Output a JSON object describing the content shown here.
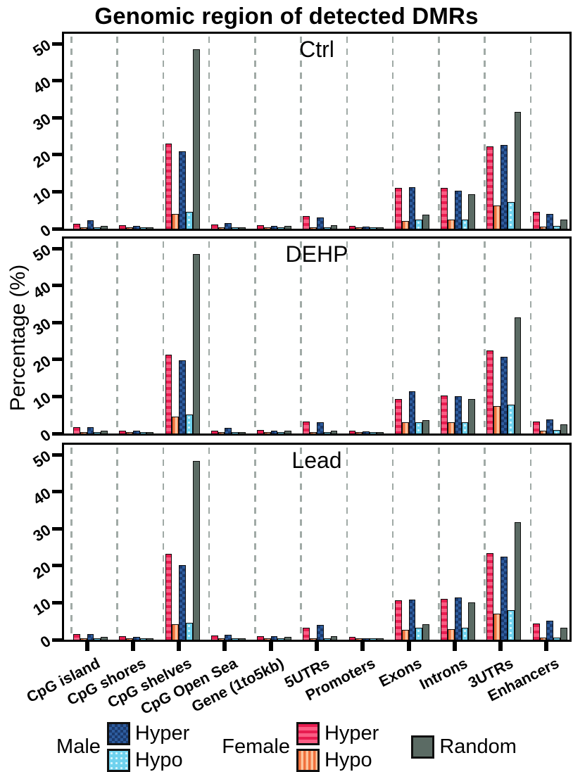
{
  "title": "Genomic region of detected DMRs",
  "y_axis": {
    "label": "Percentage (%)",
    "ticks": [
      50,
      40,
      30,
      20,
      10,
      0
    ],
    "min": 0,
    "max": 50
  },
  "categories": [
    "CpG island",
    "CpG shores",
    "CpG shelves",
    "CpG Open Sea",
    "Gene (1to5kb)",
    "5UTRs",
    "Promoters",
    "Exons",
    "Introns",
    "3UTRs",
    "Enhancers"
  ],
  "legend": {
    "male_label": "Male",
    "female_label": "Female",
    "male_hyper_label": "Hyper",
    "male_hypo_label": "Hypo",
    "female_hyper_label": "Hyper",
    "female_hypo_label": "Hypo",
    "random_label": "Random"
  },
  "colors": {
    "female_hyper_base": "#fa5d84",
    "female_hyper_stripe": "#e81c50",
    "female_hypo_base": "#fcc39c",
    "female_hypo_stripe": "#f1703c",
    "male_hyper_base": "#1b3a6d",
    "male_hyper_check": "#2d5c9e",
    "male_hypo_base": "#6fd2ee",
    "male_hypo_dot": "#d6f4fc",
    "random": "#5b6b64",
    "grid_dash": "#a0aaa6",
    "bar_border": "#0d0d0d"
  },
  "chart_data": [
    {
      "type": "bar",
      "panel": "Ctrl",
      "ylim": [
        0,
        50
      ],
      "ylabel": "Percentage (%)",
      "grid": "vertical-dashed",
      "categories": [
        "CpG island",
        "CpG shores",
        "CpG shelves",
        "CpG Open Sea",
        "Gene (1to5kb)",
        "5UTRs",
        "Promoters",
        "Exons",
        "Introns",
        "3UTRs",
        "Enhancers"
      ],
      "series": [
        {
          "name": "Female Hyper",
          "key": "female_hyper",
          "values": [
            1.3,
            1.0,
            23.0,
            1.1,
            1.0,
            3.4,
            0.8,
            11.0,
            11.0,
            22.2,
            4.5
          ]
        },
        {
          "name": "Female Hypo",
          "key": "female_hypo",
          "values": [
            0.3,
            0.2,
            4.0,
            0.15,
            0.2,
            0.3,
            0.15,
            2.0,
            2.4,
            6.3,
            0.6
          ]
        },
        {
          "name": "Male Hyper",
          "key": "male_hyper",
          "values": [
            2.2,
            0.7,
            21.0,
            1.5,
            0.7,
            3.1,
            0.5,
            11.2,
            10.2,
            22.6,
            4.0
          ]
        },
        {
          "name": "Male Hypo",
          "key": "male_hypo",
          "values": [
            0.3,
            0.2,
            4.5,
            0.15,
            0.2,
            0.4,
            0.15,
            2.4,
            2.4,
            7.2,
            0.8
          ]
        },
        {
          "name": "Random",
          "key": "random",
          "values": [
            0.8,
            0.3,
            48.5,
            0.2,
            0.7,
            1.0,
            0.2,
            3.8,
            9.3,
            31.5,
            2.4
          ]
        }
      ]
    },
    {
      "type": "bar",
      "panel": "DEHP",
      "ylim": [
        0,
        50
      ],
      "ylabel": "Percentage (%)",
      "grid": "vertical-dashed",
      "categories": [
        "CpG island",
        "CpG shores",
        "CpG shelves",
        "CpG Open Sea",
        "Gene (1to5kb)",
        "5UTRs",
        "Promoters",
        "Exons",
        "Introns",
        "3UTRs",
        "Enhancers"
      ],
      "series": [
        {
          "name": "Female Hyper",
          "key": "female_hyper",
          "values": [
            1.7,
            0.8,
            21.3,
            0.8,
            0.9,
            3.2,
            0.7,
            9.4,
            10.2,
            22.5,
            3.2
          ]
        },
        {
          "name": "Female Hypo",
          "key": "female_hypo",
          "values": [
            0.2,
            0.15,
            4.6,
            0.1,
            0.2,
            0.3,
            0.1,
            3.1,
            3.1,
            7.5,
            0.7
          ]
        },
        {
          "name": "Male Hyper",
          "key": "male_hyper",
          "values": [
            1.7,
            0.7,
            19.8,
            1.5,
            0.7,
            3.0,
            0.5,
            11.4,
            10.0,
            20.8,
            3.8
          ]
        },
        {
          "name": "Male Hypo",
          "key": "male_hypo",
          "values": [
            0.2,
            0.15,
            5.2,
            0.1,
            0.2,
            0.4,
            0.1,
            3.1,
            3.1,
            7.8,
            1.0
          ]
        },
        {
          "name": "Random",
          "key": "random",
          "values": [
            0.7,
            0.3,
            48.5,
            0.2,
            0.7,
            0.8,
            0.2,
            3.7,
            9.4,
            31.3,
            2.5
          ]
        }
      ]
    },
    {
      "type": "bar",
      "panel": "Lead",
      "ylim": [
        0,
        50
      ],
      "ylabel": "Percentage (%)",
      "grid": "vertical-dashed",
      "categories": [
        "CpG island",
        "CpG shores",
        "CpG shelves",
        "CpG Open Sea",
        "Gene (1to5kb)",
        "5UTRs",
        "Promoters",
        "Exons",
        "Introns",
        "3UTRs",
        "Enhancers"
      ],
      "series": [
        {
          "name": "Female Hyper",
          "key": "female_hyper",
          "values": [
            1.5,
            1.0,
            23.2,
            1.1,
            0.9,
            3.2,
            0.7,
            10.6,
            11.0,
            23.3,
            4.4
          ]
        },
        {
          "name": "Female Hypo",
          "key": "female_hypo",
          "values": [
            0.2,
            0.15,
            4.1,
            0.1,
            0.2,
            0.3,
            0.1,
            2.7,
            2.8,
            7.1,
            0.5
          ]
        },
        {
          "name": "Male Hyper",
          "key": "male_hyper",
          "values": [
            1.5,
            0.7,
            20.2,
            1.4,
            0.9,
            4.0,
            0.4,
            10.8,
            11.5,
            22.5,
            5.1
          ]
        },
        {
          "name": "Male Hypo",
          "key": "male_hypo",
          "values": [
            0.2,
            0.15,
            4.6,
            0.1,
            0.2,
            0.3,
            0.1,
            3.3,
            3.3,
            7.9,
            0.6
          ]
        },
        {
          "name": "Random",
          "key": "random",
          "values": [
            0.8,
            0.3,
            48.2,
            0.2,
            0.7,
            0.9,
            0.2,
            4.2,
            10.0,
            31.7,
            3.2
          ]
        }
      ]
    }
  ]
}
